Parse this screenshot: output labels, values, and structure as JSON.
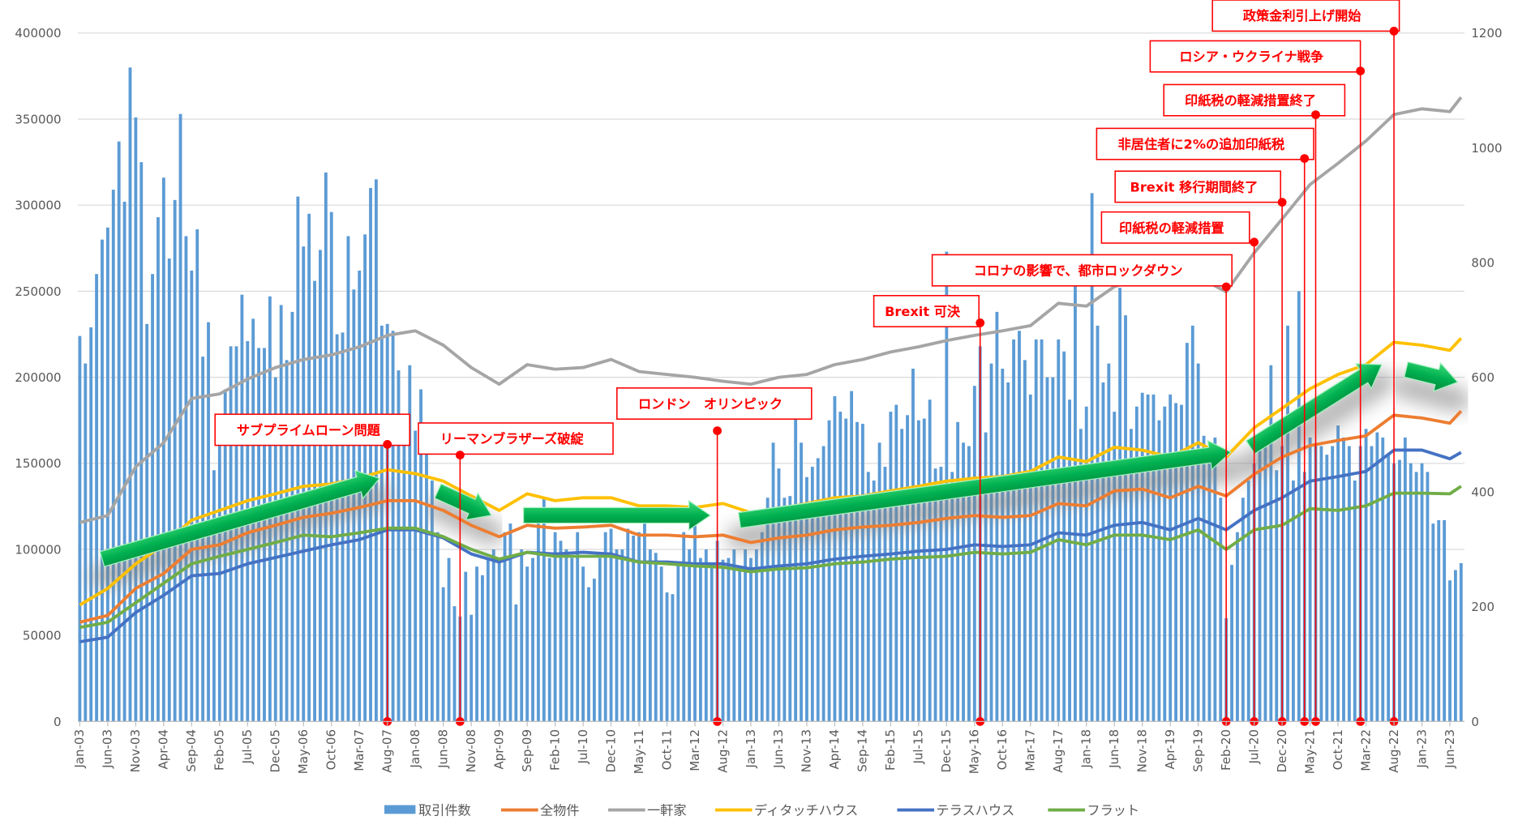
{
  "chart_data": {
    "type": "bar+line",
    "title": "",
    "start_month": "Jan-03",
    "months_count": 248,
    "x_tick_labels": [
      "Jan-03",
      "Jun-03",
      "Nov-03",
      "Apr-04",
      "Sep-04",
      "Feb-05",
      "Jul-05",
      "Dec-05",
      "May-06",
      "Oct-06",
      "Mar-07",
      "Aug-07",
      "Jan-08",
      "Jun-08",
      "Nov-08",
      "Apr-09",
      "Sep-09",
      "Feb-10",
      "Jul-10",
      "Dec-10",
      "May-11",
      "Oct-11",
      "Mar-12",
      "Aug-12",
      "Jan-13",
      "Jun-13",
      "Nov-13",
      "Apr-14",
      "Sep-14",
      "Feb-15",
      "Jul-15",
      "Dec-15",
      "May-16",
      "Oct-16",
      "Mar-17",
      "Aug-17",
      "Jan-18",
      "Jun-18",
      "Nov-18",
      "Apr-19",
      "Sep-19",
      "Feb-20",
      "Jul-20",
      "Dec-20",
      "May-21",
      "Oct-21",
      "Mar-22",
      "Aug-22",
      "Jan-23",
      "Jun-23"
    ],
    "x_tick_step_months": 5,
    "y_left": {
      "min": 0,
      "max": 400000,
      "ticks": [
        "0",
        "50000",
        "100000",
        "150000",
        "200000",
        "250000",
        "300000",
        "350000",
        "400000"
      ]
    },
    "y_right": {
      "min": 0,
      "max": 1200,
      "ticks": [
        "0",
        "200",
        "400",
        "600",
        "800",
        "1000",
        "1200"
      ]
    },
    "grid": true,
    "legend_position": "bottom",
    "bars": {
      "name": "取引件数",
      "color": "#5B9BD5",
      "axis": "left",
      "unit": "thousands",
      "values": [
        224,
        208,
        229,
        260,
        280,
        287,
        309,
        337,
        302,
        380,
        351,
        325,
        231,
        260,
        293,
        316,
        269,
        303,
        353,
        282,
        262,
        286,
        212,
        232,
        146,
        165,
        193,
        218,
        218,
        248,
        221,
        234,
        217,
        217,
        247,
        200,
        242,
        210,
        238,
        305,
        276,
        295,
        256,
        274,
        319,
        296,
        225,
        226,
        282,
        251,
        262,
        283,
        310,
        315,
        230,
        231,
        227,
        204,
        178,
        207,
        169,
        193,
        160,
        140,
        110,
        78,
        95,
        67,
        61,
        87,
        62,
        90,
        85,
        95,
        100,
        92,
        110,
        115,
        68,
        100,
        90,
        95,
        120,
        130,
        95,
        110,
        105,
        100,
        95,
        110,
        90,
        78,
        83,
        95,
        110,
        112,
        100,
        100,
        112,
        108,
        110,
        115,
        100,
        98,
        90,
        75,
        74,
        93,
        110,
        100,
        115,
        95,
        100,
        92,
        105,
        94,
        95,
        100,
        90,
        100,
        95,
        100,
        110,
        130,
        162,
        147,
        130,
        131,
        185,
        162,
        142,
        148,
        153,
        160,
        175,
        189,
        180,
        176,
        192,
        174,
        173,
        145,
        140,
        162,
        148,
        180,
        184,
        170,
        178,
        205,
        175,
        176,
        187,
        147,
        148,
        273,
        145,
        174,
        162,
        160,
        195,
        218,
        168,
        208,
        238,
        205,
        197,
        222,
        227,
        210,
        190,
        222,
        222,
        200,
        200,
        222,
        215,
        187,
        258,
        170,
        183,
        307,
        230,
        197,
        208,
        180,
        252,
        236,
        170,
        183,
        191,
        190,
        190,
        175,
        183,
        190,
        185,
        184,
        220,
        230,
        208,
        166,
        160,
        165,
        130,
        60,
        91,
        110,
        130,
        140,
        150,
        160,
        170,
        207,
        146,
        160,
        230,
        140,
        250,
        145,
        165,
        160,
        160,
        155,
        160,
        172,
        165,
        160,
        140,
        160,
        170,
        160,
        168,
        165,
        155,
        150,
        152,
        165,
        150,
        145,
        150,
        145,
        115,
        117,
        117,
        82,
        88,
        92
      ]
    },
    "series_sample_step_months": 5,
    "series": [
      {
        "name": "全物件",
        "color": "#ED7D31",
        "axis": "right",
        "values": [
          173,
          185,
          232,
          258,
          300,
          308,
          329,
          342,
          356,
          363,
          373,
          385,
          385,
          368,
          342,
          322,
          342,
          337,
          339,
          342,
          325,
          325,
          322,
          325,
          312,
          320,
          325,
          334,
          339,
          342,
          347,
          354,
          359,
          356,
          359,
          380,
          376,
          402,
          405,
          390,
          410,
          393,
          431,
          461,
          481,
          490,
          498,
          534,
          529,
          520,
          541
        ]
      },
      {
        "name": "一軒家",
        "color": "#A5A5A5",
        "axis": "right",
        "values": [
          347,
          359,
          444,
          486,
          563,
          571,
          597,
          617,
          631,
          639,
          653,
          673,
          681,
          656,
          617,
          588,
          622,
          614,
          617,
          631,
          610,
          605,
          600,
          593,
          588,
          600,
          605,
          622,
          631,
          644,
          653,
          664,
          673,
          681,
          690,
          729,
          724,
          758,
          775,
          763,
          775,
          749,
          817,
          876,
          936,
          973,
          1012,
          1058,
          1068,
          1063,
          1088
        ]
      },
      {
        "name": "ディタッチハウス",
        "color": "#FFC000",
        "axis": "right",
        "values": [
          203,
          232,
          275,
          308,
          351,
          368,
          385,
          397,
          410,
          414,
          424,
          439,
          432,
          419,
          393,
          368,
          397,
          385,
          390,
          390,
          376,
          376,
          373,
          380,
          364,
          371,
          380,
          390,
          393,
          402,
          410,
          419,
          424,
          427,
          436,
          461,
          453,
          478,
          473,
          461,
          486,
          461,
          512,
          546,
          580,
          605,
          622,
          661,
          656,
          647,
          668
        ]
      },
      {
        "name": "テラスハウス",
        "color": "#4472C4",
        "axis": "right",
        "values": [
          139,
          147,
          190,
          220,
          254,
          258,
          275,
          286,
          297,
          308,
          317,
          334,
          334,
          320,
          292,
          278,
          295,
          292,
          295,
          292,
          278,
          278,
          275,
          275,
          266,
          271,
          275,
          283,
          288,
          292,
          297,
          300,
          308,
          305,
          308,
          329,
          325,
          342,
          347,
          334,
          354,
          334,
          368,
          390,
          419,
          427,
          436,
          473,
          473,
          458,
          469
        ]
      },
      {
        "name": "フラット",
        "color": "#70AD47",
        "axis": "right",
        "values": [
          164,
          173,
          207,
          241,
          275,
          288,
          300,
          312,
          325,
          322,
          329,
          337,
          337,
          322,
          300,
          283,
          295,
          288,
          288,
          288,
          278,
          275,
          271,
          269,
          261,
          266,
          268,
          275,
          278,
          283,
          286,
          288,
          295,
          292,
          295,
          317,
          308,
          325,
          325,
          317,
          334,
          300,
          334,
          342,
          371,
          368,
          376,
          398,
          398,
          397,
          410
        ]
      }
    ],
    "annotations": [
      {
        "label": "サブプライムローン問題",
        "month": "Aug-07"
      },
      {
        "label": "リーマンブラザーズ破綻",
        "month": "Sep-08"
      },
      {
        "label": "ロンドン　オリンピック",
        "month": "Jul-12"
      },
      {
        "label": "Brexit 可決",
        "month": "Jun-16"
      },
      {
        "label": "コロナの影響で、都市ロックダウン",
        "month": "Feb-20"
      },
      {
        "label": "印紙税の軽減措置",
        "month": "Jul-20"
      },
      {
        "label": "Brexit 移行期間終了",
        "month": "Dec-20"
      },
      {
        "label": "非居住者に2%の追加印紙税",
        "month": "Apr-21"
      },
      {
        "label": "印紙税の軽減措置終了",
        "month": "Jun-21"
      },
      {
        "label": "ロシア・ウクライナ戦争",
        "month": "Feb-22"
      },
      {
        "label": "政策金利引上げ開始",
        "month": "Aug-22"
      }
    ],
    "annotation_color": "#FF0000",
    "trend_arrow_color": "#00B050"
  }
}
